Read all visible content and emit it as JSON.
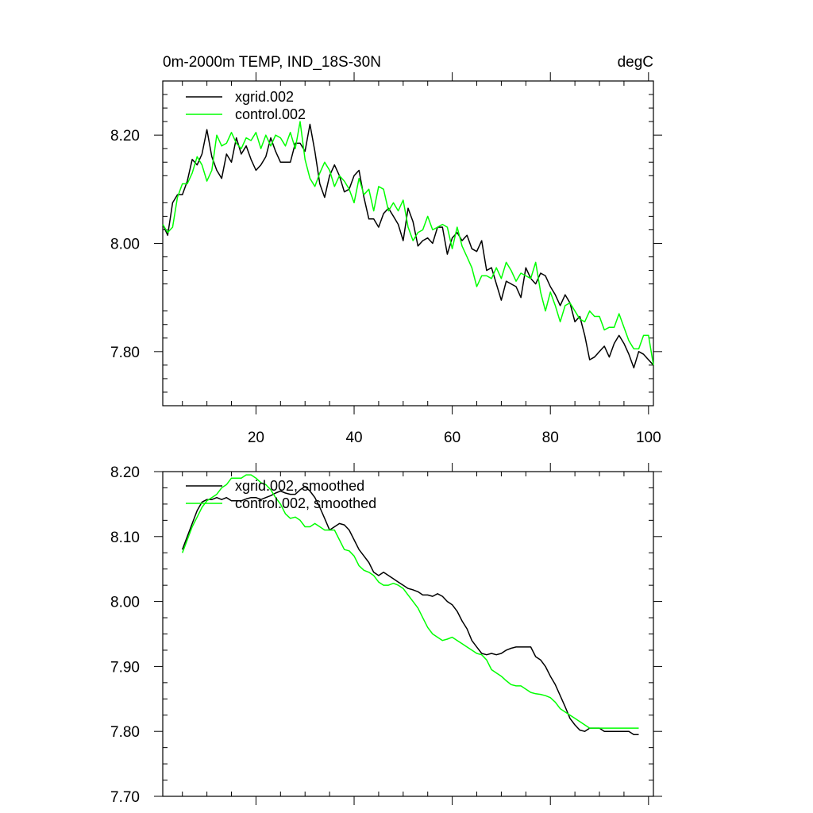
{
  "chart_data": [
    {
      "type": "line",
      "title": "0m-2000m TEMP, IND_18S-30N",
      "units": "degC",
      "xlim": [
        1,
        101
      ],
      "ylim": [
        7.7,
        8.3
      ],
      "xticks": [
        20,
        40,
        60,
        80,
        100
      ],
      "xtick_labels": [
        "20",
        "40",
        "60",
        "80",
        "100"
      ],
      "yticks": [
        7.8,
        8.0,
        8.2
      ],
      "ytick_labels": [
        "7.80",
        "8.00",
        "8.20"
      ],
      "legend": "top-left",
      "series": [
        {
          "name": "xgrid.002",
          "color": "#000000",
          "x": [
            1,
            2,
            3,
            4,
            5,
            6,
            7,
            8,
            9,
            10,
            11,
            12,
            13,
            14,
            15,
            16,
            17,
            18,
            19,
            20,
            21,
            22,
            23,
            24,
            25,
            26,
            27,
            28,
            29,
            30,
            31,
            32,
            33,
            34,
            35,
            36,
            37,
            38,
            39,
            40,
            41,
            42,
            43,
            44,
            45,
            46,
            47,
            48,
            49,
            50,
            51,
            52,
            53,
            54,
            55,
            56,
            57,
            58,
            59,
            60,
            61,
            62,
            63,
            64,
            65,
            66,
            67,
            68,
            69,
            70,
            71,
            72,
            73,
            74,
            75,
            76,
            77,
            78,
            79,
            80,
            81,
            82,
            83,
            84,
            85,
            86,
            87,
            88,
            89,
            90,
            91,
            92,
            93,
            94,
            95,
            96,
            97,
            98,
            99,
            100,
            101
          ],
          "values": [
            8.035,
            8.015,
            8.075,
            8.09,
            8.09,
            8.115,
            8.155,
            8.145,
            8.165,
            8.21,
            8.16,
            8.135,
            8.12,
            8.165,
            8.15,
            8.195,
            8.165,
            8.18,
            8.155,
            8.135,
            8.145,
            8.16,
            8.195,
            8.17,
            8.15,
            8.15,
            8.15,
            8.185,
            8.185,
            8.17,
            8.22,
            8.17,
            8.11,
            8.085,
            8.125,
            8.145,
            8.125,
            8.095,
            8.1,
            8.125,
            8.135,
            8.085,
            8.045,
            8.045,
            8.03,
            8.055,
            8.065,
            8.05,
            8.035,
            8.005,
            8.065,
            8.04,
            7.995,
            8.005,
            8.01,
            8.0,
            8.03,
            8.03,
            7.98,
            8.01,
            8.02,
            8.005,
            8.015,
            7.99,
            7.985,
            8.005,
            7.95,
            7.955,
            7.925,
            7.895,
            7.93,
            7.925,
            7.92,
            7.9,
            7.955,
            7.935,
            7.925,
            7.945,
            7.94,
            7.92,
            7.905,
            7.885,
            7.905,
            7.89,
            7.855,
            7.865,
            7.83,
            7.785,
            7.79,
            7.8,
            7.81,
            7.79,
            7.815,
            7.83,
            7.815,
            7.795,
            7.77,
            7.8,
            7.795,
            7.785,
            7.775
          ]
        },
        {
          "name": "control.002",
          "color": "#00ff00",
          "x": [
            1,
            2,
            3,
            4,
            5,
            6,
            7,
            8,
            9,
            10,
            11,
            12,
            13,
            14,
            15,
            16,
            17,
            18,
            19,
            20,
            21,
            22,
            23,
            24,
            25,
            26,
            27,
            28,
            29,
            30,
            31,
            32,
            33,
            34,
            35,
            36,
            37,
            38,
            39,
            40,
            41,
            42,
            43,
            44,
            45,
            46,
            47,
            48,
            49,
            50,
            51,
            52,
            53,
            54,
            55,
            56,
            57,
            58,
            59,
            60,
            61,
            62,
            63,
            64,
            65,
            66,
            67,
            68,
            69,
            70,
            71,
            72,
            73,
            74,
            75,
            76,
            77,
            78,
            79,
            80,
            81,
            82,
            83,
            84,
            85,
            86,
            87,
            88,
            89,
            90,
            91,
            92,
            93,
            94,
            95,
            96,
            97,
            98,
            99,
            100,
            101
          ],
          "values": [
            8.035,
            8.02,
            8.03,
            8.085,
            8.11,
            8.11,
            8.13,
            8.16,
            8.145,
            8.115,
            8.135,
            8.2,
            8.18,
            8.185,
            8.205,
            8.185,
            8.175,
            8.195,
            8.19,
            8.205,
            8.175,
            8.2,
            8.18,
            8.2,
            8.195,
            8.18,
            8.205,
            8.175,
            8.225,
            8.155,
            8.12,
            8.105,
            8.13,
            8.15,
            8.135,
            8.105,
            8.125,
            8.115,
            8.1,
            8.075,
            8.12,
            8.09,
            8.1,
            8.06,
            8.105,
            8.1,
            8.06,
            8.075,
            8.06,
            8.08,
            8.03,
            8.005,
            8.02,
            8.025,
            8.05,
            8.025,
            8.03,
            8.035,
            8.03,
            7.99,
            8.03,
            7.995,
            7.975,
            7.955,
            7.92,
            7.94,
            7.94,
            7.935,
            7.955,
            7.935,
            7.965,
            7.95,
            7.93,
            7.945,
            7.94,
            7.935,
            7.965,
            7.91,
            7.875,
            7.91,
            7.885,
            7.855,
            7.885,
            7.89,
            7.875,
            7.86,
            7.855,
            7.875,
            7.865,
            7.865,
            7.84,
            7.845,
            7.845,
            7.87,
            7.845,
            7.82,
            7.805,
            7.805,
            7.83,
            7.83,
            7.775
          ]
        }
      ]
    },
    {
      "type": "line",
      "title": "",
      "xlim": [
        1,
        101
      ],
      "ylim": [
        7.7,
        8.2
      ],
      "xticks": [
        20,
        40,
        60,
        80,
        100
      ],
      "xtick_labels": [],
      "yticks": [
        7.7,
        7.8,
        7.9,
        8.0,
        8.1,
        8.2
      ],
      "ytick_labels": [
        "7.70",
        "7.80",
        "7.90",
        "8.00",
        "8.10",
        "8.20"
      ],
      "legend": "top-left",
      "series": [
        {
          "name": "xgrid.002, smoothed",
          "color": "#000000",
          "x": [
            5,
            6,
            7,
            8,
            9,
            10,
            11,
            12,
            13,
            14,
            15,
            16,
            17,
            18,
            19,
            20,
            21,
            22,
            23,
            24,
            25,
            26,
            27,
            28,
            29,
            30,
            31,
            32,
            33,
            34,
            35,
            36,
            37,
            38,
            39,
            40,
            41,
            42,
            43,
            44,
            45,
            46,
            47,
            48,
            49,
            50,
            51,
            52,
            53,
            54,
            55,
            56,
            57,
            58,
            59,
            60,
            61,
            62,
            63,
            64,
            65,
            66,
            67,
            68,
            69,
            70,
            71,
            72,
            73,
            74,
            75,
            76,
            77,
            78,
            79,
            80,
            81,
            82,
            83,
            84,
            85,
            86,
            87,
            88,
            89,
            90,
            91,
            92,
            93,
            94,
            95,
            96,
            97,
            98
          ],
          "values": [
            8.08,
            8.1,
            8.12,
            8.14,
            8.153,
            8.157,
            8.157,
            8.16,
            8.157,
            8.16,
            8.155,
            8.155,
            8.155,
            8.158,
            8.16,
            8.16,
            8.157,
            8.16,
            8.163,
            8.167,
            8.17,
            8.167,
            8.165,
            8.165,
            8.172,
            8.177,
            8.17,
            8.16,
            8.145,
            8.128,
            8.11,
            8.115,
            8.12,
            8.118,
            8.11,
            8.095,
            8.08,
            8.07,
            8.06,
            8.045,
            8.04,
            8.045,
            8.04,
            8.035,
            8.03,
            8.025,
            8.02,
            8.018,
            8.015,
            8.01,
            8.01,
            8.008,
            8.012,
            8.008,
            8.0,
            7.995,
            7.985,
            7.97,
            7.958,
            7.94,
            7.93,
            7.92,
            7.918,
            7.92,
            7.918,
            7.92,
            7.925,
            7.928,
            7.93,
            7.93,
            7.93,
            7.93,
            7.915,
            7.91,
            7.9,
            7.885,
            7.872,
            7.855,
            7.838,
            7.82,
            7.81,
            7.802,
            7.8,
            7.805,
            7.805,
            7.805,
            7.8,
            7.8,
            7.8,
            7.8,
            7.8,
            7.8,
            7.795,
            7.795
          ]
        },
        {
          "name": "control.002, smoothed",
          "color": "#00ff00",
          "x": [
            5,
            6,
            7,
            8,
            9,
            10,
            11,
            12,
            13,
            14,
            15,
            16,
            17,
            18,
            19,
            20,
            21,
            22,
            23,
            24,
            25,
            26,
            27,
            28,
            29,
            30,
            31,
            32,
            33,
            34,
            35,
            36,
            37,
            38,
            39,
            40,
            41,
            42,
            43,
            44,
            45,
            46,
            47,
            48,
            49,
            50,
            51,
            52,
            53,
            54,
            55,
            56,
            57,
            58,
            59,
            60,
            61,
            62,
            63,
            64,
            65,
            66,
            67,
            68,
            69,
            70,
            71,
            72,
            73,
            74,
            75,
            76,
            77,
            78,
            79,
            80,
            81,
            82,
            83,
            84,
            85,
            86,
            87,
            88,
            89,
            90,
            91,
            92,
            93,
            94,
            95,
            96,
            97,
            98
          ],
          "values": [
            8.075,
            8.095,
            8.115,
            8.13,
            8.145,
            8.155,
            8.16,
            8.165,
            8.175,
            8.18,
            8.19,
            8.19,
            8.19,
            8.195,
            8.195,
            8.19,
            8.183,
            8.18,
            8.172,
            8.16,
            8.15,
            8.135,
            8.128,
            8.13,
            8.125,
            8.115,
            8.115,
            8.12,
            8.115,
            8.11,
            8.11,
            8.11,
            8.095,
            8.08,
            8.078,
            8.07,
            8.055,
            8.048,
            8.045,
            8.04,
            8.03,
            8.025,
            8.025,
            8.028,
            8.025,
            8.02,
            8.01,
            8.0,
            7.99,
            7.975,
            7.96,
            7.95,
            7.945,
            7.94,
            7.942,
            7.945,
            7.94,
            7.935,
            7.93,
            7.925,
            7.92,
            7.918,
            7.91,
            7.895,
            7.89,
            7.885,
            7.878,
            7.872,
            7.87,
            7.87,
            7.865,
            7.86,
            7.858,
            7.857,
            7.855,
            7.852,
            7.845,
            7.835,
            7.83,
            7.825,
            7.82,
            7.815,
            7.81,
            7.805,
            7.805,
            7.805,
            7.805,
            7.805,
            7.805,
            7.805,
            7.805,
            7.805,
            7.805,
            7.805
          ]
        }
      ]
    }
  ]
}
